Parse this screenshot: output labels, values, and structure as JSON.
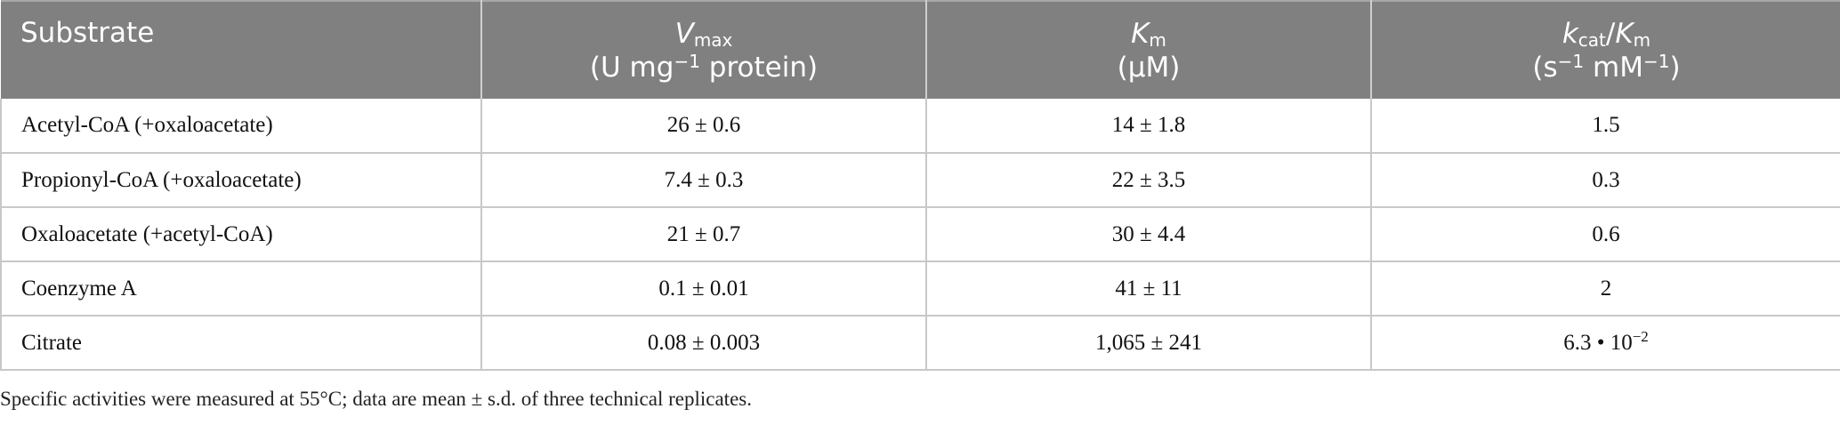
{
  "header": {
    "col1": "Substrate",
    "col2": {
      "symbol": "V",
      "sub": "max",
      "unit_pre": "(U mg",
      "unit_sup": "−1",
      "unit_post": " protein)"
    },
    "col3": {
      "symbol": "K",
      "sub": "m",
      "unit": "(μM)"
    },
    "col4": {
      "symbol1": "k",
      "sub1": "cat",
      "slash": "/",
      "symbol2": "K",
      "sub2": "m",
      "unit_a": "(s",
      "sup_a": "−1",
      "unit_b": " mM",
      "sup_b": "−1",
      "unit_c": ")"
    }
  },
  "rows": [
    {
      "substrate": "Acetyl-CoA (+oxaloacetate)",
      "vmax": "26 ± 0.6",
      "km": "14 ± 1.8",
      "kcat_km": "1.5",
      "kcat_km_sup": ""
    },
    {
      "substrate": "Propionyl-CoA (+oxaloacetate)",
      "vmax": "7.4 ± 0.3",
      "km": "22 ± 3.5",
      "kcat_km": "0.3",
      "kcat_km_sup": ""
    },
    {
      "substrate": "Oxaloacetate (+acetyl-CoA)",
      "vmax": "21 ± 0.7",
      "km": "30 ± 4.4",
      "kcat_km": "0.6",
      "kcat_km_sup": ""
    },
    {
      "substrate": "Coenzyme A",
      "vmax": "0.1 ± 0.01",
      "km": "41 ± 11",
      "kcat_km": "2",
      "kcat_km_sup": ""
    },
    {
      "substrate": "Citrate",
      "vmax": "0.08 ± 0.003",
      "km": "1,065 ± 241",
      "kcat_km": "6.3 • 10",
      "kcat_km_sup": "−2"
    }
  ],
  "footnote": "Specific activities were measured at 55°C; data are mean ± s.d. of three technical replicates."
}
